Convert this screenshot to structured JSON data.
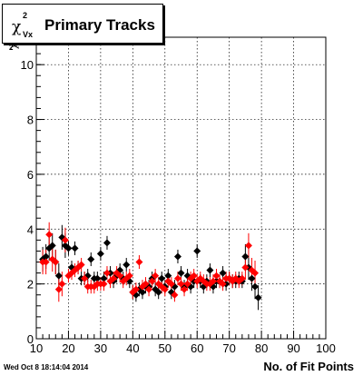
{
  "title": {
    "chi": "χ",
    "sup": "2",
    "sub": "Vx",
    "text": "Primary Tracks"
  },
  "footer": {
    "timestamp": "Wed Oct  8 18:14:04 2014"
  },
  "chart_data": {
    "type": "scatter",
    "title": "χ²Vx Primary Tracks",
    "xlabel": "No. of Fit Points",
    "ylabel": "χ²Vx",
    "xlim": [
      10,
      100
    ],
    "ylim": [
      0,
      11
    ],
    "xticks": [
      10,
      20,
      30,
      40,
      50,
      60,
      70,
      80,
      90,
      100
    ],
    "yticks": [
      0,
      2,
      4,
      6,
      8,
      10
    ],
    "grid": true,
    "colors": {
      "series1": "#000000",
      "series2": "#ff0000"
    },
    "series": [
      {
        "marker": "diamond",
        "color": "#000000",
        "points": [
          [
            12,
            2.9
          ],
          [
            13,
            3.0
          ],
          [
            14,
            3.3
          ],
          [
            15,
            3.4
          ],
          [
            16,
            2.8
          ],
          [
            17,
            2.3
          ],
          [
            18,
            3.7
          ],
          [
            19,
            3.4
          ],
          [
            20,
            3.3
          ],
          [
            21,
            2.6
          ],
          [
            22,
            3.3
          ],
          [
            23,
            2.6
          ],
          [
            24,
            2.2
          ],
          [
            25,
            2.2
          ],
          [
            26,
            2.3
          ],
          [
            27,
            2.9
          ],
          [
            28,
            2.2
          ],
          [
            29,
            2.2
          ],
          [
            30,
            3.1
          ],
          [
            31,
            2.2
          ],
          [
            32,
            3.5
          ],
          [
            33,
            2.4
          ],
          [
            34,
            2.1
          ],
          [
            35,
            2.3
          ],
          [
            36,
            2.5
          ],
          [
            37,
            2.2
          ],
          [
            38,
            2.7
          ],
          [
            39,
            2.1
          ],
          [
            40,
            1.7
          ],
          [
            41,
            1.6
          ],
          [
            42,
            1.8
          ],
          [
            43,
            1.7
          ],
          [
            44,
            1.9
          ],
          [
            45,
            1.9
          ],
          [
            46,
            2.2
          ],
          [
            47,
            1.8
          ],
          [
            48,
            1.7
          ],
          [
            49,
            2.2
          ],
          [
            50,
            1.9
          ],
          [
            51,
            2.3
          ],
          [
            52,
            1.7
          ],
          [
            53,
            1.9
          ],
          [
            54,
            3.0
          ],
          [
            55,
            2.4
          ],
          [
            56,
            1.9
          ],
          [
            57,
            2.3
          ],
          [
            58,
            1.9
          ],
          [
            59,
            2.1
          ],
          [
            60,
            3.2
          ],
          [
            61,
            2.1
          ],
          [
            62,
            1.9
          ],
          [
            63,
            2.1
          ],
          [
            64,
            2.5
          ],
          [
            65,
            1.9
          ],
          [
            66,
            2.1
          ],
          [
            67,
            2.1
          ],
          [
            68,
            2.4
          ],
          [
            69,
            2.0
          ],
          [
            70,
            2.2
          ],
          [
            71,
            2.1
          ],
          [
            72,
            2.1
          ],
          [
            73,
            2.2
          ],
          [
            74,
            2.1
          ],
          [
            75,
            3.0
          ],
          [
            76,
            2.6
          ],
          [
            77,
            2.2
          ],
          [
            78,
            1.9
          ],
          [
            79,
            1.5
          ]
        ]
      },
      {
        "marker": "diamond",
        "color": "#ff0000",
        "points": [
          [
            12,
            2.8
          ],
          [
            13,
            2.8
          ],
          [
            14,
            3.8
          ],
          [
            15,
            2.9
          ],
          [
            16,
            2.8
          ],
          [
            17,
            1.8
          ],
          [
            18,
            2.0
          ],
          [
            19,
            3.6
          ],
          [
            20,
            2.3
          ],
          [
            21,
            2.4
          ],
          [
            22,
            2.5
          ],
          [
            23,
            2.6
          ],
          [
            24,
            2.7
          ],
          [
            25,
            2.2
          ],
          [
            26,
            1.9
          ],
          [
            27,
            1.9
          ],
          [
            28,
            1.9
          ],
          [
            29,
            2.0
          ],
          [
            30,
            2.0
          ],
          [
            31,
            2.0
          ],
          [
            32,
            2.4
          ],
          [
            33,
            2.1
          ],
          [
            34,
            2.2
          ],
          [
            35,
            2.4
          ],
          [
            36,
            2.3
          ],
          [
            37,
            2.1
          ],
          [
            38,
            2.2
          ],
          [
            39,
            2.3
          ],
          [
            40,
            1.7
          ],
          [
            41,
            1.8
          ],
          [
            42,
            2.8
          ],
          [
            43,
            1.9
          ],
          [
            44,
            2.0
          ],
          [
            45,
            1.8
          ],
          [
            46,
            2.1
          ],
          [
            47,
            2.3
          ],
          [
            48,
            2.0
          ],
          [
            49,
            1.9
          ],
          [
            50,
            1.8
          ],
          [
            51,
            2.1
          ],
          [
            52,
            2.0
          ],
          [
            53,
            1.6
          ],
          [
            54,
            2.2
          ],
          [
            55,
            2.0
          ],
          [
            56,
            1.8
          ],
          [
            57,
            2.0
          ],
          [
            58,
            2.2
          ],
          [
            59,
            2.3
          ],
          [
            60,
            2.1
          ],
          [
            61,
            2.2
          ],
          [
            62,
            2.1
          ],
          [
            63,
            2.0
          ],
          [
            64,
            2.0
          ],
          [
            65,
            2.1
          ],
          [
            66,
            2.3
          ],
          [
            67,
            2.1
          ],
          [
            68,
            2.0
          ],
          [
            69,
            2.2
          ],
          [
            70,
            2.2
          ],
          [
            71,
            2.1
          ],
          [
            72,
            2.2
          ],
          [
            73,
            2.1
          ],
          [
            74,
            2.2
          ],
          [
            75,
            2.6
          ],
          [
            76,
            3.4
          ],
          [
            77,
            2.5
          ],
          [
            78,
            2.4
          ]
        ]
      }
    ]
  }
}
